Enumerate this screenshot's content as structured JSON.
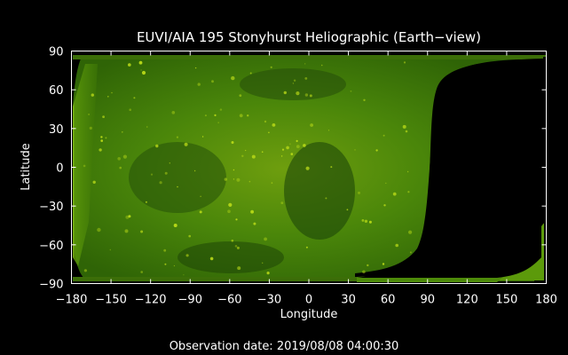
{
  "title": "EUVI/AIA 195 Stonyhurst Heliographic (Earth−view)",
  "xlabel": "Longitude",
  "ylabel": "Latitude",
  "footer": "Observation date: 2019/08/08 04:00:30",
  "x_ticks": [
    "−180",
    "−150",
    "−120",
    "−90",
    "−60",
    "−30",
    "0",
    "30",
    "60",
    "90",
    "120",
    "150",
    "180"
  ],
  "y_ticks": [
    "90",
    "60",
    "30",
    "0",
    "−30",
    "−60",
    "−90"
  ],
  "map": {
    "lon_range": [
      -180,
      180
    ],
    "lat_range": [
      -90,
      90
    ],
    "colors": {
      "dark": "#0d2a02",
      "mid": "#3f7a08",
      "bright": "#c8e61a",
      "frame": "#ffffff",
      "background": "#000000"
    }
  }
}
